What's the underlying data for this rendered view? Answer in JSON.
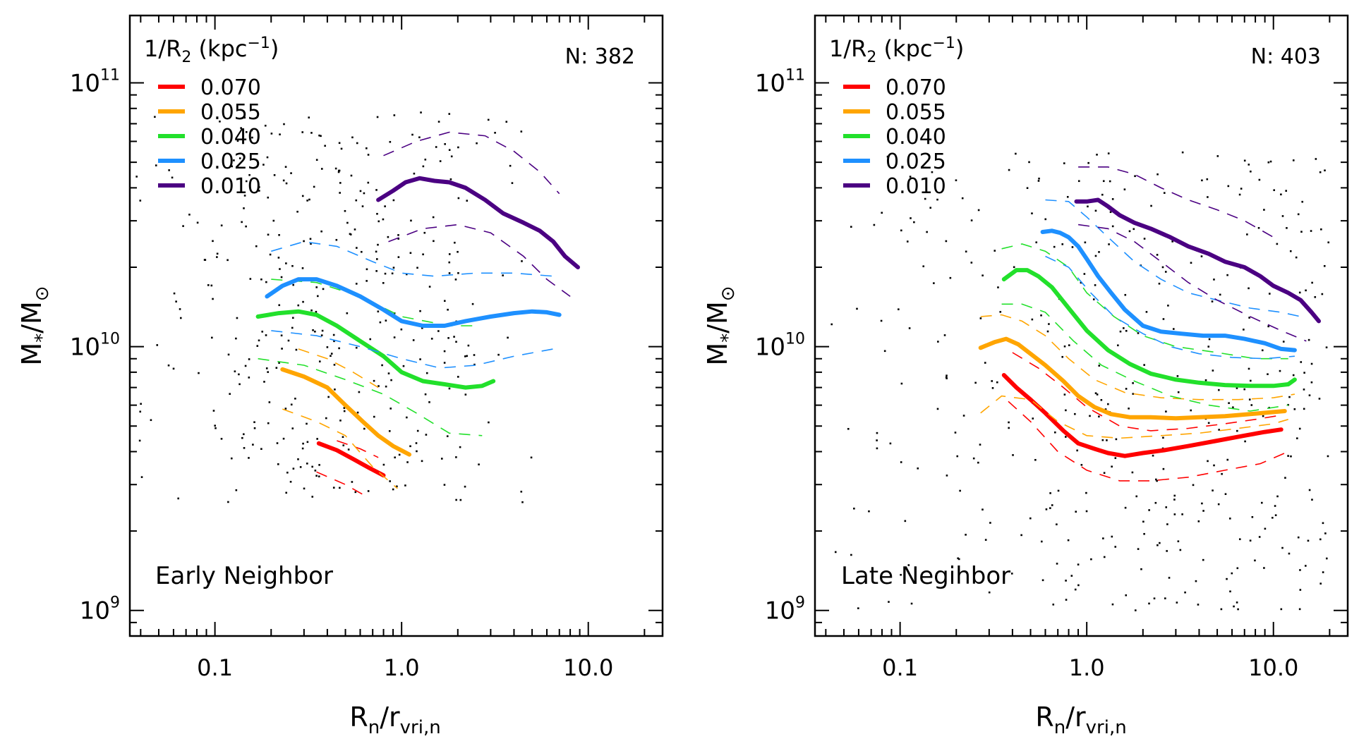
{
  "colors": {
    "0.070": "#ff0000",
    "0.055": "#ffa500",
    "0.040": "#22e02b",
    "0.025": "#1e90ff",
    "0.010": "#4b0082",
    "points": "#000000",
    "frame": "#000000"
  },
  "chart_data": [
    {
      "type": "line",
      "panel_label": "Early Neighbor",
      "n_label": "N: 382",
      "legend_title": "1/R2 (kpc-1)",
      "xlabel": "Rn/rvri,n",
      "ylabel": "M*/M⊙",
      "xscale": "log",
      "yscale": "log",
      "xlim": [
        0.035,
        25
      ],
      "ylim": [
        800000000,
        180000000000
      ],
      "xticks": [
        "0.1",
        "1.0",
        "10.0"
      ],
      "yticks": [
        "10^9",
        "10^10",
        "10^11"
      ],
      "series": [
        {
          "name": "0.070",
          "median": {
            "x": [
              0.36,
              0.45,
              0.55,
              0.68,
              0.8
            ],
            "y": [
              4300000000.0,
              4050000000.0,
              3750000000.0,
              3450000000.0,
              3250000000.0
            ]
          },
          "upper": {
            "x": [
              0.45,
              0.6,
              0.75
            ],
            "y": [
              4400000000.0,
              4100000000.0,
              3800000000.0
            ]
          },
          "lower": {
            "x": [
              0.35,
              0.5,
              0.65
            ],
            "y": [
              3350000000.0,
              3000000000.0,
              2700000000.0
            ]
          }
        },
        {
          "name": "0.055",
          "median": {
            "x": [
              0.23,
              0.3,
              0.4,
              0.5,
              0.62,
              0.75,
              0.9,
              1.1
            ],
            "y": [
              8200000000.0,
              7700000000.0,
              7000000000.0,
              6000000000.0,
              5200000000.0,
              4600000000.0,
              4200000000.0,
              3900000000.0
            ]
          },
          "upper": {
            "x": [
              0.28,
              0.4,
              0.55,
              0.75
            ],
            "y": [
              9800000000.0,
              9000000000.0,
              8000000000.0,
              7000000000.0
            ]
          },
          "lower": {
            "x": [
              0.23,
              0.35,
              0.5,
              0.7,
              0.95
            ],
            "y": [
              5800000000.0,
              5200000000.0,
              4600000000.0,
              3500000000.0,
              2900000000.0
            ]
          }
        },
        {
          "name": "0.040",
          "median": {
            "x": [
              0.17,
              0.22,
              0.28,
              0.35,
              0.45,
              0.6,
              0.8,
              1.0,
              1.3,
              1.7,
              2.2,
              2.7,
              3.1
            ],
            "y": [
              13000000000.0,
              13400000000.0,
              13600000000.0,
              13200000000.0,
              12000000000.0,
              10500000000.0,
              9200000000.0,
              8000000000.0,
              7400000000.0,
              7200000000.0,
              7000000000.0,
              7100000000.0,
              7400000000.0
            ]
          },
          "upper": {
            "x": [
              0.2,
              0.35,
              0.6,
              1.0,
              1.8,
              2.6
            ],
            "y": [
              18000000000.0,
              17500000000.0,
              15500000000.0,
              13000000000.0,
              12000000000.0,
              12000000000.0
            ]
          },
          "lower": {
            "x": [
              0.17,
              0.3,
              0.5,
              0.8,
              1.2,
              1.8,
              2.7
            ],
            "y": [
              9000000000.0,
              8500000000.0,
              7500000000.0,
              6600000000.0,
              5600000000.0,
              4700000000.0,
              4600000000.0
            ]
          }
        },
        {
          "name": "0.025",
          "median": {
            "x": [
              0.19,
              0.23,
              0.28,
              0.35,
              0.45,
              0.6,
              0.8,
              1.0,
              1.3,
              1.7,
              2.2,
              3.0,
              4.0,
              5.0,
              6.0,
              7.0
            ],
            "y": [
              15500000000.0,
              17000000000.0,
              18000000000.0,
              18000000000.0,
              17000000000.0,
              15500000000.0,
              13800000000.0,
              12500000000.0,
              12000000000.0,
              12000000000.0,
              12500000000.0,
              13000000000.0,
              13400000000.0,
              13600000000.0,
              13500000000.0,
              13200000000.0
            ]
          },
          "upper": {
            "x": [
              0.2,
              0.3,
              0.45,
              0.7,
              1.0,
              1.5,
              2.5,
              4.0,
              6.5
            ],
            "y": [
              23000000000.0,
              25000000000.0,
              24000000000.0,
              21000000000.0,
              19000000000.0,
              18500000000.0,
              19000000000.0,
              19000000000.0,
              18500000000.0
            ]
          },
          "lower": {
            "x": [
              0.2,
              0.35,
              0.6,
              1.0,
              1.6,
              2.5,
              4.0,
              6.5
            ],
            "y": [
              11500000000.0,
              11000000000.0,
              10000000000.0,
              9000000000.0,
              8300000000.0,
              8500000000.0,
              9200000000.0,
              9800000000.0
            ]
          }
        },
        {
          "name": "0.010",
          "median": {
            "x": [
              0.75,
              0.9,
              1.05,
              1.25,
              1.5,
              1.8,
              2.2,
              2.8,
              3.5,
              4.5,
              5.5,
              6.5,
              7.5,
              8.8
            ],
            "y": [
              36000000000.0,
              39000000000.0,
              42000000000.0,
              43500000000.0,
              42500000000.0,
              42000000000.0,
              40000000000.0,
              36000000000.0,
              32000000000.0,
              29500000000.0,
              27500000000.0,
              25000000000.0,
              22000000000.0,
              20000000000.0
            ]
          },
          "upper": {
            "x": [
              0.8,
              1.2,
              1.8,
              2.8,
              4.0,
              5.5,
              7.0
            ],
            "y": [
              53000000000.0,
              60000000000.0,
              65000000000.0,
              63000000000.0,
              55000000000.0,
              46000000000.0,
              38000000000.0
            ]
          },
          "lower": {
            "x": [
              0.85,
              1.3,
              2.0,
              3.0,
              4.5,
              6.0,
              8.0
            ],
            "y": [
              25000000000.0,
              28000000000.0,
              29000000000.0,
              27000000000.0,
              22000000000.0,
              18000000000.0,
              15500000000.0
            ]
          }
        }
      ]
    },
    {
      "type": "line",
      "panel_label": "Late Negihbor",
      "n_label": "N: 403",
      "legend_title": "1/R2 (kpc-1)",
      "xlabel": "Rn/rvri,n",
      "ylabel": "M*/M⊙",
      "xscale": "log",
      "yscale": "log",
      "xlim": [
        0.035,
        25
      ],
      "ylim": [
        800000000,
        180000000000
      ],
      "xticks": [
        "0.1",
        "1.0",
        "10.0"
      ],
      "yticks": [
        "10^9",
        "10^10",
        "10^11"
      ],
      "series": [
        {
          "name": "0.070",
          "median": {
            "x": [
              0.36,
              0.42,
              0.5,
              0.6,
              0.75,
              0.9,
              1.1,
              1.3,
              1.6,
              2.0,
              2.6,
              3.5,
              5.0,
              7.0,
              9.0,
              11.0
            ],
            "y": [
              7800000000.0,
              7000000000.0,
              6300000000.0,
              5600000000.0,
              4800000000.0,
              4300000000.0,
              4100000000.0,
              3950000000.0,
              3850000000.0,
              3950000000.0,
              4050000000.0,
              4200000000.0,
              4400000000.0,
              4600000000.0,
              4750000000.0,
              4850000000.0
            ]
          },
          "upper": {
            "x": [
              0.4,
              0.55,
              0.75,
              1.0,
              1.5,
              2.2,
              3.5,
              5.5,
              8.0,
              11.0
            ],
            "y": [
              9500000000.0,
              8300000000.0,
              7000000000.0,
              5900000000.0,
              5000000000.0,
              4800000000.0,
              4900000000.0,
              5100000000.0,
              5300000000.0,
              5500000000.0
            ]
          },
          "lower": {
            "x": [
              0.38,
              0.5,
              0.7,
              1.0,
              1.5,
              2.2,
              3.5,
              5.5,
              8.5,
              12.0
            ],
            "y": [
              6200000000.0,
              5200000000.0,
              4000000000.0,
              3400000000.0,
              3100000000.0,
              3100000000.0,
              3200000000.0,
              3400000000.0,
              3600000000.0,
              4000000000.0
            ]
          }
        },
        {
          "name": "0.055",
          "median": {
            "x": [
              0.27,
              0.32,
              0.37,
              0.43,
              0.5,
              0.6,
              0.75,
              0.9,
              1.1,
              1.35,
              1.7,
              2.2,
              3.0,
              4.0,
              5.5,
              7.5,
              10.0,
              11.5
            ],
            "y": [
              9900000000.0,
              10400000000.0,
              10700000000.0,
              10200000000.0,
              9400000000.0,
              8500000000.0,
              7400000000.0,
              6500000000.0,
              5900000000.0,
              5550000000.0,
              5400000000.0,
              5400000000.0,
              5350000000.0,
              5400000000.0,
              5450000000.0,
              5550000000.0,
              5650000000.0,
              5700000000.0
            ]
          },
          "upper": {
            "x": [
              0.27,
              0.35,
              0.45,
              0.6,
              0.8,
              1.1,
              1.6,
              2.5,
              4.0,
              6.5,
              10.0,
              13.0
            ],
            "y": [
              13000000000.0,
              13200000000.0,
              12500000000.0,
              11000000000.0,
              9000000000.0,
              7500000000.0,
              6700000000.0,
              6400000000.0,
              6300000000.0,
              6300000000.0,
              6400000000.0,
              6600000000.0
            ]
          },
          "lower": {
            "x": [
              0.27,
              0.35,
              0.5,
              0.7,
              1.0,
              1.5,
              2.5,
              4.0,
              6.5,
              10.0,
              12.0
            ],
            "y": [
              5600000000.0,
              6500000000.0,
              6300000000.0,
              5200000000.0,
              4600000000.0,
              4500000000.0,
              4600000000.0,
              4700000000.0,
              4900000000.0,
              5100000000.0,
              5300000000.0
            ]
          }
        },
        {
          "name": "0.040",
          "median": {
            "x": [
              0.36,
              0.42,
              0.48,
              0.55,
              0.65,
              0.8,
              1.0,
              1.3,
              1.7,
              2.2,
              3.0,
              4.0,
              5.5,
              7.5,
              10.0,
              12.0,
              13.0
            ],
            "y": [
              18000000000.0,
              19500000000.0,
              19500000000.0,
              18500000000.0,
              16800000000.0,
              14000000000.0,
              11500000000.0,
              9700000000.0,
              8600000000.0,
              7900000000.0,
              7500000000.0,
              7300000000.0,
              7150000000.0,
              7100000000.0,
              7100000000.0,
              7200000000.0,
              7500000000.0
            ]
          },
          "upper": {
            "x": [
              0.35,
              0.45,
              0.6,
              0.8,
              1.0,
              1.4,
              2.0,
              3.0,
              5.0,
              8.0,
              12.0
            ],
            "y": [
              23500000000.0,
              24500000000.0,
              23000000000.0,
              20000000000.0,
              16000000000.0,
              13000000000.0,
              11000000000.0,
              10000000000.0,
              9500000000.0,
              9000000000.0,
              9000000000.0
            ]
          },
          "lower": {
            "x": [
              0.35,
              0.45,
              0.6,
              0.85,
              1.2,
              1.8,
              2.8,
              4.5,
              7.5,
              12.0
            ],
            "y": [
              14500000000.0,
              14500000000.0,
              13500000000.0,
              10500000000.0,
              8500000000.0,
              7400000000.0,
              6500000000.0,
              6000000000.0,
              5700000000.0,
              6000000000.0
            ]
          }
        },
        {
          "name": "0.025",
          "median": {
            "x": [
              0.58,
              0.65,
              0.72,
              0.8,
              0.9,
              1.0,
              1.15,
              1.35,
              1.6,
              2.0,
              2.5,
              3.2,
              4.2,
              5.5,
              7.0,
              9.0,
              11.0,
              13.0
            ],
            "y": [
              27200000000.0,
              27500000000.0,
              27000000000.0,
              26000000000.0,
              24000000000.0,
              21500000000.0,
              18500000000.0,
              16000000000.0,
              13800000000.0,
              12000000000.0,
              11400000000.0,
              11200000000.0,
              11000000000.0,
              11000000000.0,
              10700000000.0,
              10300000000.0,
              9800000000.0,
              9700000000.0
            ]
          },
          "upper": {
            "x": [
              0.6,
              0.8,
              1.0,
              1.3,
              1.8,
              2.5,
              3.5,
              5.0,
              7.5,
              11.0,
              14.0
            ],
            "y": [
              36000000000.0,
              35500000000.0,
              31000000000.0,
              26000000000.0,
              21000000000.0,
              18000000000.0,
              16000000000.0,
              15000000000.0,
              14000000000.0,
              13500000000.0,
              13000000000.0
            ]
          },
          "lower": {
            "x": [
              0.6,
              0.8,
              1.05,
              1.4,
              2.0,
              2.8,
              4.0,
              6.0,
              9.0,
              13.0
            ],
            "y": [
              22000000000.0,
              20000000000.0,
              16000000000.0,
              13000000000.0,
              11200000000.0,
              10000000000.0,
              9400000000.0,
              9100000000.0,
              9000000000.0,
              9200000000.0
            ]
          }
        },
        {
          "name": "0.010",
          "median": {
            "x": [
              0.88,
              1.0,
              1.15,
              1.3,
              1.5,
              1.8,
              2.2,
              2.8,
              3.5,
              4.5,
              5.5,
              7.0,
              8.5,
              10.0,
              12.0,
              14.0,
              16.0,
              17.5
            ],
            "y": [
              35500000000.0,
              35500000000.0,
              36000000000.0,
              34000000000.0,
              31500000000.0,
              29500000000.0,
              28000000000.0,
              26000000000.0,
              24000000000.0,
              22500000000.0,
              21000000000.0,
              20000000000.0,
              18500000000.0,
              17000000000.0,
              16000000000.0,
              15000000000.0,
              13500000000.0,
              12500000000.0
            ]
          },
          "upper": {
            "x": [
              0.9,
              1.3,
              1.8,
              2.5,
              3.5,
              5.0,
              7.0,
              10.0
            ],
            "y": [
              48000000000.0,
              48000000000.0,
              45000000000.0,
              40000000000.0,
              36000000000.0,
              33000000000.0,
              30000000000.0,
              26000000000.0
            ]
          },
          "lower": {
            "x": [
              0.9,
              1.3,
              1.8,
              2.5,
              3.5,
              5.0,
              7.5,
              11.0,
              15.0
            ],
            "y": [
              29000000000.0,
              28000000000.0,
              25000000000.0,
              21000000000.0,
              17500000000.0,
              15000000000.0,
              13000000000.0,
              11500000000.0,
              10500000000.0
            ]
          }
        }
      ]
    }
  ]
}
